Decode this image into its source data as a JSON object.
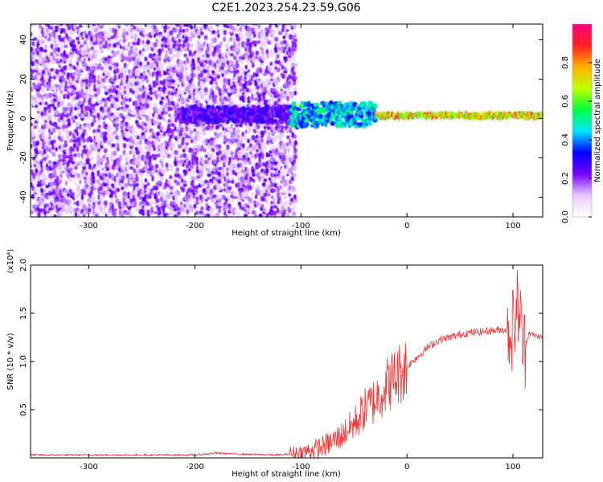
{
  "title": "C2E1.2023.254.23.59.G06",
  "chart_data": [
    {
      "type": "heatmap",
      "xlabel": "Height of straight line (km)",
      "ylabel": "Frequency (Hz)",
      "xlim": [
        -355,
        128
      ],
      "ylim": [
        -50,
        48
      ],
      "x_ticks": [
        -300,
        -200,
        -100,
        0,
        100
      ],
      "y_ticks": [
        -40,
        -20,
        0,
        20,
        40
      ],
      "x_tick_labels": [
        "-300",
        "-200",
        "-100",
        "0",
        "100"
      ],
      "y_tick_labels": [
        "-40",
        "-20",
        "0",
        "20",
        "40"
      ],
      "colorbar": {
        "label": "Normalized spectral amplitude",
        "range": [
          0,
          1
        ],
        "ticks": [
          0,
          0.2,
          0.4,
          0.6,
          0.8
        ],
        "tick_labels": [
          "0.0",
          "0.2",
          "0.4",
          "0.6",
          "0.8"
        ],
        "colors": [
          "#ffffff",
          "#e6ccff",
          "#7a00ff",
          "#0000ff",
          "#00e5ff",
          "#00ff40",
          "#c0ff00",
          "#ffb000",
          "#ff2020",
          "#ff0080"
        ]
      },
      "regions": [
        {
          "x": [
            -355,
            -105
          ],
          "freq": [
            -50,
            48
          ],
          "amplitude": 0.15,
          "pattern": "scattered noise"
        },
        {
          "x": [
            -215,
            -105
          ],
          "freq_center": 2,
          "freq_width": 8,
          "amplitude": 0.3
        },
        {
          "x": [
            -110,
            -30
          ],
          "freq_center": 2,
          "freq_width": 12,
          "amplitude": 0.5
        },
        {
          "x": [
            -30,
            128
          ],
          "freq_center": 1.5,
          "freq_width": 3,
          "amplitude": 0.85
        }
      ]
    },
    {
      "type": "line",
      "xlabel": "Height of straight line (km)",
      "ylabel": "SNR (10 * v/v)",
      "yscale_label": "(x10⁴)",
      "xlim": [
        -355,
        128
      ],
      "ylim": [
        0,
        2.0
      ],
      "x_ticks": [
        -300,
        -200,
        -100,
        0,
        100
      ],
      "y_ticks": [
        0.5,
        1.0,
        1.5,
        2.0
      ],
      "x_tick_labels": [
        "-300",
        "-200",
        "-100",
        "0",
        "100"
      ],
      "y_tick_labels": [
        "0.5",
        "1.0",
        "1.5",
        "2.0"
      ],
      "color": "#ee3333",
      "series": [
        {
          "x": [
            -355,
            -300,
            -250,
            -200,
            -180,
            -160,
            -120,
            -100,
            -90,
            -80,
            -70,
            -60,
            -50,
            -40,
            -30,
            -20,
            -10,
            0,
            10,
            20,
            30,
            40,
            50,
            60,
            70,
            80,
            90,
            95,
            100,
            105,
            110,
            115,
            120,
            128
          ],
          "values": [
            0.03,
            0.03,
            0.03,
            0.03,
            0.05,
            0.04,
            0.03,
            0.05,
            0.08,
            0.12,
            0.17,
            0.25,
            0.35,
            0.5,
            0.6,
            0.75,
            0.85,
            0.95,
            1.05,
            1.15,
            1.22,
            1.25,
            1.28,
            1.3,
            1.31,
            1.32,
            1.33,
            1.33,
            1.35,
            1.6,
            1.1,
            1.3,
            1.27,
            1.25
          ]
        }
      ]
    }
  ]
}
